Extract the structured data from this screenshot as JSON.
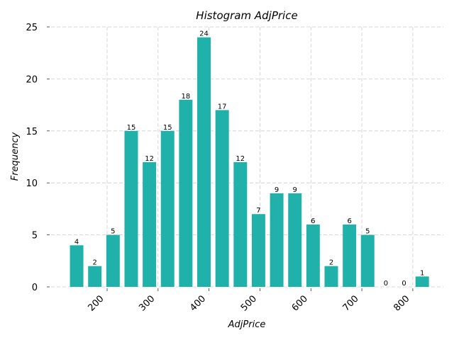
{
  "chart_data": {
    "type": "bar",
    "title": "Histogram AdjPrice",
    "xlabel": "AdjPrice",
    "ylabel": "Frequency",
    "bar_color": "#20b2aa",
    "grid": true,
    "bin_width": 35.7,
    "bins": [
      {
        "center": 140.2,
        "value": 4
      },
      {
        "center": 175.9,
        "value": 2
      },
      {
        "center": 211.6,
        "value": 5
      },
      {
        "center": 247.3,
        "value": 15
      },
      {
        "center": 283.0,
        "value": 12
      },
      {
        "center": 318.7,
        "value": 15
      },
      {
        "center": 354.4,
        "value": 18
      },
      {
        "center": 390.1,
        "value": 24
      },
      {
        "center": 425.8,
        "value": 17
      },
      {
        "center": 461.5,
        "value": 12
      },
      {
        "center": 497.2,
        "value": 7
      },
      {
        "center": 532.9,
        "value": 9
      },
      {
        "center": 568.6,
        "value": 9
      },
      {
        "center": 604.3,
        "value": 6
      },
      {
        "center": 640.0,
        "value": 2
      },
      {
        "center": 675.7,
        "value": 6
      },
      {
        "center": 711.4,
        "value": 5
      },
      {
        "center": 747.1,
        "value": 0
      },
      {
        "center": 782.8,
        "value": 0
      },
      {
        "center": 818.5,
        "value": 1
      }
    ],
    "xticks": [
      200,
      300,
      400,
      500,
      600,
      700,
      800
    ],
    "yticks": [
      0,
      5,
      10,
      15,
      20,
      25
    ],
    "xlim": [
      90,
      860
    ],
    "ylim": [
      0,
      25
    ]
  }
}
